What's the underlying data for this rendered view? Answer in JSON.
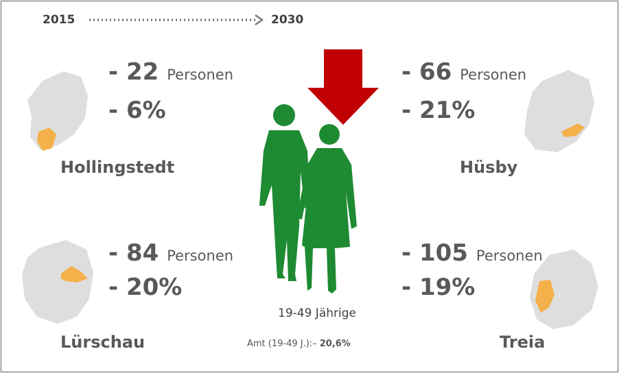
{
  "header": {
    "from": "2015",
    "to": "2030"
  },
  "regions": [
    {
      "name": "Hollingstedt",
      "persons": "- 22",
      "unit": "Personen",
      "percent": "- 6%"
    },
    {
      "name": "Hüsby",
      "persons": "- 66",
      "unit": "Personen",
      "percent": "- 21%"
    },
    {
      "name": "Lürschau",
      "persons": "- 84",
      "unit": "Personen",
      "percent": "- 20%"
    },
    {
      "name": "Treia",
      "persons": "- 105",
      "unit": "Personen",
      "percent": "- 19%"
    }
  ],
  "center": {
    "label": "19-49 Jährige",
    "footnote": "Amt (19-49 J.):–",
    "footnote_value": "20,6%"
  }
}
